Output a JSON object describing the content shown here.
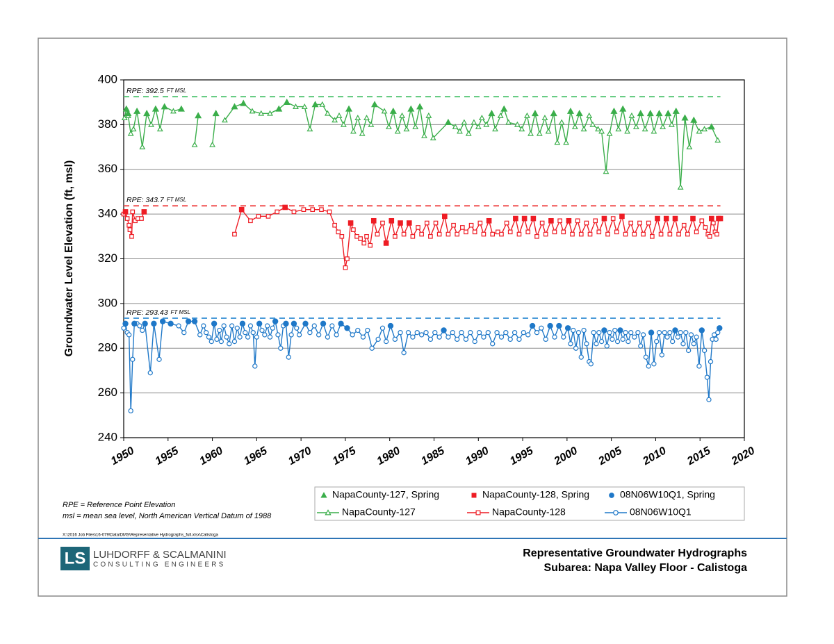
{
  "chart_data": {
    "type": "line",
    "y_label": "Groundwater Level Elevation (ft, msl)",
    "xlim": [
      1950,
      2020
    ],
    "xticks": [
      1950,
      1955,
      1960,
      1965,
      1970,
      1975,
      1980,
      1985,
      1990,
      1995,
      2000,
      2005,
      2010,
      2015,
      2020
    ],
    "ylim": [
      240,
      400
    ],
    "yticks": [
      240,
      260,
      280,
      300,
      320,
      340,
      360,
      380,
      400
    ],
    "grid": true,
    "reference_lines": [
      {
        "label": "RPE: 392.5",
        "unit": "FT MSL",
        "value": 392.5,
        "color": "#5cc87a"
      },
      {
        "label": "RPE: 343.7",
        "unit": "FT MSL",
        "value": 343.7,
        "color": "#f05050"
      },
      {
        "label": "RPE: 293.43",
        "unit": "FT MSL",
        "value": 293.43,
        "color": "#4a9ad8"
      }
    ],
    "series": [
      {
        "name": "NapaCounty-127, Spring",
        "color": "#3aae4a",
        "marker": "triangle",
        "filled": true,
        "line": false,
        "x": [
          1950.3,
          1950.5,
          1951.5,
          1952.6,
          1953.6,
          1954.6,
          1956.5,
          1958.4,
          1960.4,
          1962.5,
          1963.5,
          1967.5,
          1968.4,
          1971.6,
          1975.4,
          1978.3,
          1980.4,
          1982.4,
          1983.4,
          1986.6,
          1991.5,
          1992.9,
          1996.4,
          1998.5,
          2000.4,
          2001.4,
          2005.3,
          2006.3,
          2008.3,
          2009.4,
          2010.4,
          2011.4,
          2012.3,
          2013.3,
          2014.3,
          2016.3
        ],
        "values": [
          387,
          385,
          386,
          385,
          387,
          388,
          387,
          384,
          385,
          388,
          389.5,
          387,
          390,
          389,
          387,
          389,
          386,
          387,
          388,
          381,
          385,
          387,
          385,
          385,
          386,
          385,
          386,
          387,
          385,
          385,
          385,
          385,
          386,
          383,
          382,
          379
        ]
      },
      {
        "name": "NapaCounty-128, Spring",
        "color": "#ee1c24",
        "marker": "square",
        "filled": true,
        "line": false,
        "x": [
          1950.2,
          1952.3,
          1963.3,
          1968.2,
          1975.6,
          1978.2,
          1979.6,
          1980.2,
          1981.2,
          1982.2,
          1986.2,
          1991.2,
          1994.2,
          1995.2,
          1996.2,
          1998.2,
          2000.2,
          2004.2,
          2006.2,
          2010.2,
          2011.2,
          2012.2,
          2014.2,
          2016.3,
          2017.1,
          2017.3
        ],
        "values": [
          341,
          341,
          342,
          343,
          336,
          337,
          327,
          337,
          336,
          336,
          339,
          337,
          338,
          338,
          338,
          337,
          337,
          338,
          339,
          338,
          338,
          338,
          338,
          338,
          338,
          338
        ]
      },
      {
        "name": "08N06W10Q1, Spring",
        "color": "#1f78c8",
        "marker": "circle",
        "filled": true,
        "line": false,
        "x": [
          1950.2,
          1951.2,
          1952.4,
          1953.4,
          1954.4,
          1955.3,
          1957.3,
          1958.0,
          1960.2,
          1963.4,
          1965.3,
          1967.1,
          1968.3,
          1969.2,
          1970.5,
          1972.5,
          1974.5,
          1975.2,
          1980.1,
          1986.1,
          1996.1,
          1998.1,
          1999.1,
          2000.1,
          2004.2,
          2006.0,
          2009.5,
          2012.2,
          2015.2,
          2017.2
        ],
        "values": [
          291,
          291,
          291,
          291,
          292,
          291,
          292,
          292,
          291,
          291,
          291,
          292,
          291,
          291,
          291,
          291,
          291,
          289,
          290,
          288,
          290,
          290,
          290,
          289,
          288,
          288,
          287,
          288,
          288,
          289
        ]
      },
      {
        "name": "NapaCounty-127",
        "color": "#3aae4a",
        "marker": "triangle",
        "filled": false,
        "line": true,
        "x": [
          1950.1,
          1950.3,
          1950.5,
          1950.8,
          1951.1,
          1951.5,
          1952.1,
          1952.6,
          1953.1,
          1953.6,
          1954.1,
          1954.6,
          1955.6,
          1956.5,
          1957.2,
          1958.0,
          1958.4,
          1959.0,
          1960.0,
          1960.4,
          1961.0,
          1961.4,
          1962.5,
          1963.5,
          1964.5,
          1965.5,
          1966.5,
          1967.5,
          1968.4,
          1969.4,
          1970.4,
          1971.0,
          1971.6,
          1972.4,
          1973.0,
          1973.8,
          1974.3,
          1974.8,
          1975.4,
          1975.9,
          1976.4,
          1976.9,
          1977.4,
          1977.9,
          1978.3,
          1979.4,
          1979.9,
          1980.4,
          1980.9,
          1981.4,
          1981.9,
          1982.4,
          1982.9,
          1983.4,
          1983.9,
          1984.4,
          1984.9,
          1986.6,
          1987.4,
          1987.9,
          1988.4,
          1988.9,
          1989.5,
          1990.0,
          1990.4,
          1990.9,
          1991.5,
          1991.9,
          1992.5,
          1992.9,
          1993.4,
          1994.4,
          1994.9,
          1995.5,
          1995.9,
          1996.4,
          1996.9,
          1997.5,
          1997.9,
          1998.5,
          1998.9,
          1999.4,
          1999.9,
          2000.4,
          2000.9,
          2001.4,
          2001.9,
          2002.5,
          2002.9,
          2003.5,
          2003.9,
          2004.4,
          2004.8,
          2005.3,
          2005.8,
          2006.3,
          2006.8,
          2007.3,
          2007.8,
          2008.3,
          2008.8,
          2009.4,
          2009.8,
          2010.4,
          2010.8,
          2011.4,
          2011.8,
          2012.3,
          2012.8,
          2013.3,
          2013.8,
          2014.3,
          2014.9,
          2015.5,
          2016.3,
          2017.0
        ],
        "values": [
          383,
          387,
          384,
          376,
          378,
          386,
          370,
          385,
          380,
          387,
          378,
          388,
          386,
          387,
          null,
          371,
          384,
          null,
          371,
          385,
          null,
          382,
          388,
          389.5,
          386,
          385,
          385,
          387,
          390,
          388,
          388,
          378,
          389,
          389,
          385,
          382,
          384,
          380,
          387,
          377,
          383,
          376,
          383,
          380,
          389,
          386,
          379,
          386,
          377,
          384,
          378,
          387,
          379,
          388,
          375,
          384,
          374,
          381,
          379,
          377,
          381,
          376,
          381,
          379,
          383,
          380,
          385,
          378,
          384,
          387,
          381,
          380,
          378,
          384,
          376,
          385,
          376,
          383,
          377,
          385,
          372,
          381,
          372,
          386,
          379,
          385,
          378,
          384,
          380,
          378,
          377,
          359,
          376,
          386,
          378,
          387,
          377,
          384,
          379,
          385,
          378,
          385,
          377,
          385,
          379,
          385,
          380,
          386,
          352,
          383,
          370,
          382,
          377,
          378,
          379,
          373
        ]
      },
      {
        "name": "NapaCounty-128",
        "color": "#ee1c24",
        "marker": "square",
        "filled": false,
        "line": true,
        "x": [
          1950.0,
          1950.2,
          1950.4,
          1950.6,
          1950.7,
          1950.9,
          1951.0,
          1951.3,
          1951.6,
          1952.0,
          1952.3,
          1952.6,
          1962.5,
          1963.3,
          1964.3,
          1965.2,
          1966.3,
          1967.3,
          1968.2,
          1969.2,
          1970.3,
          1971.3,
          1972.3,
          1973.2,
          1973.8,
          1974.2,
          1974.6,
          1975.0,
          1975.2,
          1975.6,
          1975.9,
          1976.3,
          1976.7,
          1977.1,
          1977.4,
          1977.8,
          1978.2,
          1978.6,
          1979.2,
          1979.6,
          1980.2,
          1980.6,
          1981.2,
          1981.6,
          1982.2,
          1982.6,
          1983.2,
          1983.6,
          1984.2,
          1984.6,
          1985.2,
          1985.6,
          1986.2,
          1986.6,
          1987.2,
          1987.6,
          1988.2,
          1988.6,
          1989.2,
          1989.6,
          1990.2,
          1990.6,
          1991.2,
          1991.6,
          1992.2,
          1992.6,
          1993.2,
          1993.6,
          1994.2,
          1994.6,
          1995.2,
          1995.6,
          1996.2,
          1996.6,
          1997.2,
          1997.6,
          1998.2,
          1998.6,
          1999.2,
          1999.6,
          2000.2,
          2000.6,
          2001.2,
          2001.6,
          2002.2,
          2002.6,
          2003.2,
          2003.6,
          2004.2,
          2004.6,
          2005.2,
          2005.6,
          2006.2,
          2006.6,
          2007.2,
          2007.6,
          2008.2,
          2008.6,
          2009.2,
          2009.6,
          2010.2,
          2010.6,
          2011.2,
          2011.6,
          2012.2,
          2012.6,
          2013.2,
          2013.6,
          2014.2,
          2014.6,
          2015.2,
          2015.6,
          2015.9,
          2016.1,
          2016.3,
          2016.5,
          2016.7,
          2016.9,
          2017.1,
          2017.3
        ],
        "values": [
          340,
          341,
          338,
          335,
          333,
          330,
          341,
          337,
          338,
          338,
          341,
          null,
          331,
          342,
          337,
          339,
          339,
          341,
          343,
          341,
          342,
          342,
          342,
          341,
          335,
          332,
          330,
          316,
          320,
          336,
          333,
          330,
          329,
          327,
          330,
          326,
          337,
          331,
          336,
          327,
          337,
          330,
          336,
          331,
          336,
          330,
          334,
          331,
          336,
          330,
          336,
          331,
          339,
          331,
          335,
          331,
          334,
          332,
          335,
          332,
          336,
          331,
          337,
          331,
          332,
          331,
          336,
          332,
          338,
          331,
          338,
          332,
          338,
          330,
          336,
          331,
          337,
          332,
          337,
          332,
          337,
          331,
          337,
          331,
          336,
          331,
          337,
          332,
          338,
          331,
          338,
          332,
          339,
          331,
          336,
          331,
          336,
          331,
          336,
          330,
          338,
          331,
          338,
          331,
          338,
          331,
          335,
          331,
          338,
          332,
          337,
          334,
          331,
          330,
          338,
          336,
          332,
          331,
          338,
          338
        ]
      },
      {
        "name": "08N06W10Q1",
        "color": "#1f78c8",
        "marker": "circle",
        "filled": false,
        "line": true,
        "x": [
          1950.0,
          1950.2,
          1950.4,
          1950.6,
          1950.8,
          1951.0,
          1951.2,
          1951.5,
          1951.8,
          1952.1,
          1952.4,
          1953.0,
          1953.4,
          1954.0,
          1954.4,
          1955.3,
          1956.2,
          1956.8,
          1957.3,
          1958.0,
          1958.6,
          1959.0,
          1959.3,
          1959.6,
          1959.9,
          1960.2,
          1960.5,
          1960.8,
          1961.0,
          1961.3,
          1961.6,
          1961.9,
          1962.2,
          1962.5,
          1962.8,
          1963.1,
          1963.4,
          1963.7,
          1964.0,
          1964.3,
          1964.6,
          1964.8,
          1965.0,
          1965.3,
          1965.6,
          1965.9,
          1966.2,
          1966.5,
          1966.8,
          1967.1,
          1967.4,
          1967.7,
          1968.0,
          1968.3,
          1968.6,
          1968.9,
          1969.2,
          1969.5,
          1969.8,
          1970.5,
          1971.0,
          1971.5,
          1972.0,
          1972.5,
          1973.0,
          1973.5,
          1974.0,
          1974.5,
          1975.2,
          1975.8,
          1976.4,
          1977.0,
          1977.5,
          1978.0,
          1978.7,
          1979.2,
          1979.6,
          1980.1,
          1980.6,
          1981.2,
          1981.6,
          1982.1,
          1982.6,
          1983.1,
          1983.6,
          1984.1,
          1984.6,
          1985.1,
          1985.6,
          1986.1,
          1986.6,
          1987.1,
          1987.6,
          1988.1,
          1988.6,
          1989.1,
          1989.6,
          1990.1,
          1990.6,
          1991.1,
          1991.6,
          1992.1,
          1992.6,
          1993.1,
          1993.6,
          1994.1,
          1994.6,
          1995.1,
          1995.6,
          1996.1,
          1996.6,
          1997.1,
          1997.6,
          1998.1,
          1998.6,
          1999.1,
          1999.6,
          2000.1,
          2000.4,
          2000.7,
          2001.0,
          2001.3,
          2001.6,
          2001.9,
          2002.2,
          2002.5,
          2002.7,
          2003.0,
          2003.3,
          2003.6,
          2003.9,
          2004.2,
          2004.5,
          2004.8,
          2005.1,
          2005.4,
          2005.7,
          2006.0,
          2006.3,
          2006.6,
          2006.9,
          2007.2,
          2007.6,
          2008.0,
          2008.3,
          2008.6,
          2008.9,
          2009.2,
          2009.5,
          2009.8,
          2010.1,
          2010.4,
          2010.7,
          2011.0,
          2011.3,
          2011.6,
          2011.9,
          2012.2,
          2012.5,
          2012.8,
          2013.1,
          2013.4,
          2013.7,
          2014.0,
          2014.3,
          2014.6,
          2014.9,
          2015.2,
          2015.5,
          2015.8,
          2016.0,
          2016.2,
          2016.4,
          2016.6,
          2016.8,
          2017.0,
          2017.2
        ],
        "values": [
          289,
          291,
          287,
          286,
          252,
          275,
          291,
          291,
          290,
          288,
          291,
          269,
          291,
          275,
          292,
          291,
          290,
          287,
          292,
          292,
          286,
          290,
          287,
          285,
          283,
          291,
          284,
          288,
          283,
          290,
          285,
          282,
          290,
          283,
          289,
          285,
          291,
          287,
          285,
          290,
          287,
          272,
          285,
          291,
          288,
          286,
          290,
          285,
          289,
          292,
          286,
          280,
          290,
          291,
          276,
          286,
          291,
          289,
          286,
          291,
          287,
          290,
          286,
          291,
          285,
          290,
          286,
          291,
          289,
          286,
          288,
          285,
          288,
          280,
          284,
          289,
          283,
          290,
          284,
          287,
          278,
          287,
          285,
          287,
          286,
          287,
          284,
          287,
          285,
          288,
          285,
          287,
          284,
          287,
          284,
          287,
          283,
          287,
          285,
          287,
          282,
          287,
          285,
          287,
          284,
          287,
          284,
          287,
          286,
          290,
          287,
          289,
          284,
          290,
          285,
          290,
          285,
          289,
          282,
          288,
          280,
          287,
          276,
          288,
          282,
          274,
          273,
          287,
          282,
          287,
          283,
          288,
          281,
          287,
          284,
          288,
          283,
          288,
          284,
          287,
          283,
          287,
          285,
          287,
          281,
          286,
          276,
          272,
          287,
          273,
          283,
          287,
          277,
          287,
          285,
          287,
          283,
          288,
          285,
          287,
          282,
          287,
          279,
          286,
          282,
          285,
          272,
          288,
          279,
          267,
          257,
          274,
          284,
          286,
          284,
          287,
          289
        ]
      }
    ],
    "notes": [
      "RPE = Reference Point Elevation",
      "msl = mean sea level, North American Vertical Datum of 1988"
    ]
  },
  "file_path": "X:\\2016 Job Files\\16-079\\Data\\DMS\\Representative Hydrographs_full.xlsx\\Calistoga",
  "logo": {
    "mark": "LS",
    "name": "LUHDORFF & SCALMANINI",
    "tagline": "CONSULTING ENGINEERS"
  },
  "title_block": {
    "title": "Representative Groundwater Hydrographs",
    "subtitle": "Subarea: Napa Valley Floor - Calistoga"
  }
}
